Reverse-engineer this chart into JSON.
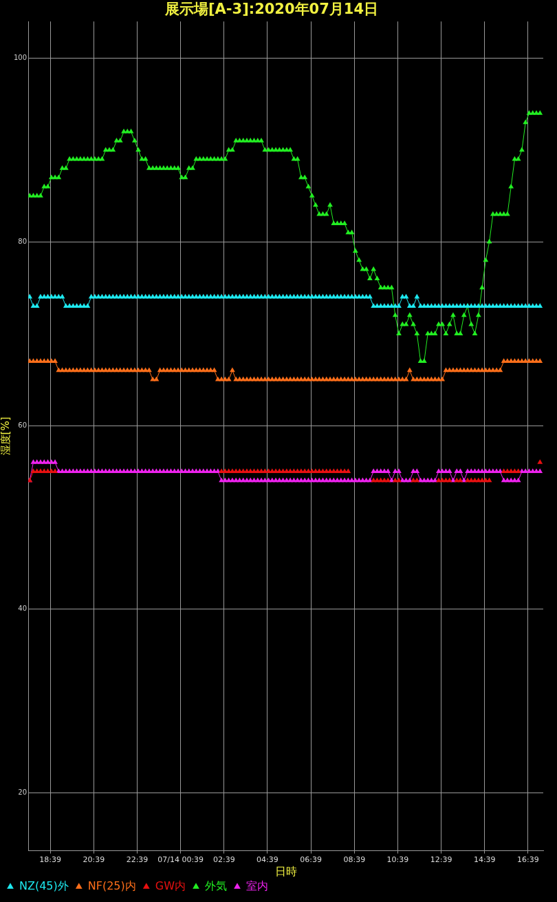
{
  "chart_data": {
    "type": "line",
    "title": "展示場[A-3]:2020年07月14日",
    "xlabel": "日時",
    "ylabel": "湿度[%]",
    "xlim": [
      "2020-07-13T17:38",
      "2020-07-14T17:21"
    ],
    "ylim": [
      13.7,
      104
    ],
    "xticks": [
      {
        "value": "2020-07-13T18:39",
        "label": "18:39"
      },
      {
        "value": "2020-07-13T20:39",
        "label": "20:39"
      },
      {
        "value": "2020-07-13T22:39",
        "label": "22:39"
      },
      {
        "value": "2020-07-14T00:39",
        "label": "07/14 00:39"
      },
      {
        "value": "2020-07-14T02:39",
        "label": "02:39"
      },
      {
        "value": "2020-07-14T04:39",
        "label": "04:39"
      },
      {
        "value": "2020-07-14T06:39",
        "label": "06:39"
      },
      {
        "value": "2020-07-14T08:39",
        "label": "08:39"
      },
      {
        "value": "2020-07-14T10:39",
        "label": "10:39"
      },
      {
        "value": "2020-07-14T12:39",
        "label": "12:39"
      },
      {
        "value": "2020-07-14T14:39",
        "label": "14:39"
      },
      {
        "value": "2020-07-14T16:39",
        "label": "16:39"
      }
    ],
    "yticks": [
      20,
      40,
      60,
      80,
      100
    ],
    "grid": true,
    "legend": "bottom left",
    "marker": "triangle",
    "line_style": "solid",
    "x": [
      "2020-07-13T17:42",
      "2020-07-13T17:52",
      "2020-07-13T18:02",
      "2020-07-13T18:12",
      "2020-07-13T18:22",
      "2020-07-13T18:32",
      "2020-07-13T18:42",
      "2020-07-13T18:52",
      "2020-07-13T19:02",
      "2020-07-13T19:12",
      "2020-07-13T19:22",
      "2020-07-13T19:32",
      "2020-07-13T19:42",
      "2020-07-13T19:52",
      "2020-07-13T20:02",
      "2020-07-13T20:12",
      "2020-07-13T20:22",
      "2020-07-13T20:32",
      "2020-07-13T20:42",
      "2020-07-13T20:52",
      "2020-07-13T21:02",
      "2020-07-13T21:12",
      "2020-07-13T21:22",
      "2020-07-13T21:32",
      "2020-07-13T21:42",
      "2020-07-13T21:52",
      "2020-07-13T22:02",
      "2020-07-13T22:12",
      "2020-07-13T22:22",
      "2020-07-13T22:32",
      "2020-07-13T22:42",
      "2020-07-13T22:52",
      "2020-07-13T23:02",
      "2020-07-13T23:12",
      "2020-07-13T23:22",
      "2020-07-13T23:32",
      "2020-07-13T23:42",
      "2020-07-13T23:52",
      "2020-07-14T00:02",
      "2020-07-14T00:12",
      "2020-07-14T00:22",
      "2020-07-14T00:32",
      "2020-07-14T00:42",
      "2020-07-14T00:52",
      "2020-07-14T01:02",
      "2020-07-14T01:12",
      "2020-07-14T01:22",
      "2020-07-14T01:32",
      "2020-07-14T01:42",
      "2020-07-14T01:52",
      "2020-07-14T02:02",
      "2020-07-14T02:12",
      "2020-07-14T02:22",
      "2020-07-14T02:32",
      "2020-07-14T02:42",
      "2020-07-14T02:52",
      "2020-07-14T03:02",
      "2020-07-14T03:12",
      "2020-07-14T03:22",
      "2020-07-14T03:32",
      "2020-07-14T03:42",
      "2020-07-14T03:52",
      "2020-07-14T04:02",
      "2020-07-14T04:12",
      "2020-07-14T04:22",
      "2020-07-14T04:32",
      "2020-07-14T04:42",
      "2020-07-14T04:52",
      "2020-07-14T05:02",
      "2020-07-14T05:12",
      "2020-07-14T05:22",
      "2020-07-14T05:32",
      "2020-07-14T05:42",
      "2020-07-14T05:52",
      "2020-07-14T06:02",
      "2020-07-14T06:12",
      "2020-07-14T06:22",
      "2020-07-14T06:32",
      "2020-07-14T06:42",
      "2020-07-14T06:52",
      "2020-07-14T07:02",
      "2020-07-14T07:12",
      "2020-07-14T07:22",
      "2020-07-14T07:32",
      "2020-07-14T07:42",
      "2020-07-14T07:52",
      "2020-07-14T08:02",
      "2020-07-14T08:12",
      "2020-07-14T08:22",
      "2020-07-14T08:32",
      "2020-07-14T08:42",
      "2020-07-14T08:52",
      "2020-07-14T09:02",
      "2020-07-14T09:12",
      "2020-07-14T09:22",
      "2020-07-14T09:32",
      "2020-07-14T09:42",
      "2020-07-14T09:52",
      "2020-07-14T10:02",
      "2020-07-14T10:12",
      "2020-07-14T10:22",
      "2020-07-14T10:32",
      "2020-07-14T10:42",
      "2020-07-14T10:52",
      "2020-07-14T11:02",
      "2020-07-14T11:12",
      "2020-07-14T11:22",
      "2020-07-14T11:32",
      "2020-07-14T11:42",
      "2020-07-14T11:52",
      "2020-07-14T12:02",
      "2020-07-14T12:12",
      "2020-07-14T12:22",
      "2020-07-14T12:32",
      "2020-07-14T12:42",
      "2020-07-14T12:52",
      "2020-07-14T13:02",
      "2020-07-14T13:12",
      "2020-07-14T13:22",
      "2020-07-14T13:32",
      "2020-07-14T13:42",
      "2020-07-14T13:52",
      "2020-07-14T14:02",
      "2020-07-14T14:12",
      "2020-07-14T14:22",
      "2020-07-14T14:32",
      "2020-07-14T14:42",
      "2020-07-14T14:52",
      "2020-07-14T15:02",
      "2020-07-14T15:12",
      "2020-07-14T15:22",
      "2020-07-14T15:32",
      "2020-07-14T15:42",
      "2020-07-14T15:52",
      "2020-07-14T16:02",
      "2020-07-14T16:12",
      "2020-07-14T16:22",
      "2020-07-14T16:32",
      "2020-07-14T16:42",
      "2020-07-14T16:52",
      "2020-07-14T17:02",
      "2020-07-14T17:12"
    ],
    "series": [
      {
        "name": "NZ(45)外",
        "color": "#1de9f0",
        "values": [
          74,
          73,
          73,
          74,
          74,
          74,
          74,
          74,
          74,
          74,
          73,
          73,
          73,
          73,
          73,
          73,
          73,
          74,
          74,
          74,
          74,
          74,
          74,
          74,
          74,
          74,
          74,
          74,
          74,
          74,
          74,
          74,
          74,
          74,
          74,
          74,
          74,
          74,
          74,
          74,
          74,
          74,
          74,
          74,
          74,
          74,
          74,
          74,
          74,
          74,
          74,
          74,
          74,
          74,
          74,
          74,
          74,
          74,
          74,
          74,
          74,
          74,
          74,
          74,
          74,
          74,
          74,
          74,
          74,
          74,
          74,
          74,
          74,
          74,
          74,
          74,
          74,
          74,
          74,
          74,
          74,
          74,
          74,
          74,
          74,
          74,
          74,
          74,
          74,
          74,
          74,
          74,
          74,
          74,
          74,
          73,
          73,
          73,
          73,
          73,
          73,
          73,
          73,
          74,
          74,
          73,
          73,
          74,
          73,
          73,
          73,
          73,
          73,
          73,
          73,
          73,
          73,
          73,
          73,
          73,
          73,
          73,
          73,
          73,
          73,
          73,
          73,
          73,
          73,
          73,
          73,
          73,
          73,
          73,
          73,
          73,
          73,
          73,
          73,
          73,
          73,
          73
        ]
      },
      {
        "name": "NF(25)内",
        "color": "#ff6f1a",
        "values": [
          67,
          67,
          67,
          67,
          67,
          67,
          67,
          67,
          66,
          66,
          66,
          66,
          66,
          66,
          66,
          66,
          66,
          66,
          66,
          66,
          66,
          66,
          66,
          66,
          66,
          66,
          66,
          66,
          66,
          66,
          66,
          66,
          66,
          66,
          65,
          65,
          66,
          66,
          66,
          66,
          66,
          66,
          66,
          66,
          66,
          66,
          66,
          66,
          66,
          66,
          66,
          66,
          65,
          65,
          65,
          65,
          66,
          65,
          65,
          65,
          65,
          65,
          65,
          65,
          65,
          65,
          65,
          65,
          65,
          65,
          65,
          65,
          65,
          65,
          65,
          65,
          65,
          65,
          65,
          65,
          65,
          65,
          65,
          65,
          65,
          65,
          65,
          65,
          65,
          65,
          65,
          65,
          65,
          65,
          65,
          65,
          65,
          65,
          65,
          65,
          65,
          65,
          65,
          65,
          65,
          66,
          65,
          65,
          65,
          65,
          65,
          65,
          65,
          65,
          65,
          66,
          66,
          66,
          66,
          66,
          66,
          66,
          66,
          66,
          66,
          66,
          66,
          66,
          66,
          66,
          66,
          67,
          67,
          67,
          67,
          67,
          67,
          67,
          67,
          67,
          67,
          67
        ]
      },
      {
        "name": "GW内",
        "color": "#e81010",
        "values": [
          54,
          55,
          55,
          55,
          55,
          55,
          55,
          55,
          null,
          null,
          null,
          null,
          null,
          null,
          null,
          null,
          null,
          null,
          null,
          null,
          null,
          null,
          null,
          null,
          null,
          null,
          null,
          null,
          null,
          null,
          null,
          null,
          null,
          null,
          null,
          null,
          null,
          null,
          null,
          null,
          null,
          null,
          null,
          null,
          null,
          null,
          null,
          null,
          null,
          null,
          null,
          null,
          null,
          55,
          55,
          55,
          55,
          55,
          55,
          55,
          55,
          55,
          55,
          55,
          55,
          55,
          55,
          55,
          55,
          55,
          55,
          55,
          55,
          55,
          55,
          55,
          55,
          55,
          55,
          55,
          55,
          55,
          55,
          55,
          55,
          55,
          55,
          55,
          55,
          null,
          null,
          null,
          null,
          null,
          null,
          54,
          54,
          54,
          54,
          54,
          null,
          54,
          54,
          null,
          null,
          null,
          54,
          54,
          null,
          null,
          null,
          null,
          null,
          54,
          54,
          54,
          54,
          null,
          54,
          54,
          null,
          54,
          54,
          54,
          54,
          54,
          54,
          54,
          null,
          null,
          null,
          55,
          55,
          55,
          55,
          55,
          null,
          null,
          null,
          null,
          null,
          56
        ]
      },
      {
        "name": "外気",
        "color": "#22ee22",
        "values": [
          85,
          85,
          85,
          85,
          86,
          86,
          87,
          87,
          87,
          88,
          88,
          89,
          89,
          89,
          89,
          89,
          89,
          89,
          89,
          89,
          89,
          90,
          90,
          90,
          91,
          91,
          92,
          92,
          92,
          91,
          90,
          89,
          89,
          88,
          88,
          88,
          88,
          88,
          88,
          88,
          88,
          88,
          87,
          87,
          88,
          88,
          89,
          89,
          89,
          89,
          89,
          89,
          89,
          89,
          89,
          90,
          90,
          91,
          91,
          91,
          91,
          91,
          91,
          91,
          91,
          90,
          90,
          90,
          90,
          90,
          90,
          90,
          90,
          89,
          89,
          87,
          87,
          86,
          85,
          84,
          83,
          83,
          83,
          84,
          82,
          82,
          82,
          82,
          81,
          81,
          79,
          78,
          77,
          77,
          76,
          77,
          76,
          75,
          75,
          75,
          75,
          72,
          70,
          71,
          71,
          72,
          71,
          70,
          67,
          67,
          70,
          70,
          70,
          71,
          71,
          70,
          71,
          72,
          70,
          70,
          72,
          73,
          71,
          70,
          72,
          75,
          78,
          80,
          83,
          83,
          83,
          83,
          83,
          86,
          89,
          89,
          90,
          93,
          94,
          94,
          94,
          94
        ]
      },
      {
        "name": "室内",
        "color": "#ee22ee",
        "values": [
          54,
          56,
          56,
          56,
          56,
          56,
          56,
          56,
          55,
          55,
          55,
          55,
          55,
          55,
          55,
          55,
          55,
          55,
          55,
          55,
          55,
          55,
          55,
          55,
          55,
          55,
          55,
          55,
          55,
          55,
          55,
          55,
          55,
          55,
          55,
          55,
          55,
          55,
          55,
          55,
          55,
          55,
          55,
          55,
          55,
          55,
          55,
          55,
          55,
          55,
          55,
          55,
          55,
          54,
          54,
          54,
          54,
          54,
          54,
          54,
          54,
          54,
          54,
          54,
          54,
          54,
          54,
          54,
          54,
          54,
          54,
          54,
          54,
          54,
          54,
          54,
          54,
          54,
          54,
          54,
          54,
          54,
          54,
          54,
          54,
          54,
          54,
          54,
          54,
          54,
          54,
          54,
          54,
          54,
          54,
          55,
          55,
          55,
          55,
          55,
          54,
          55,
          55,
          54,
          54,
          54,
          55,
          55,
          54,
          54,
          54,
          54,
          54,
          55,
          55,
          55,
          55,
          54,
          55,
          55,
          54,
          55,
          55,
          55,
          55,
          55,
          55,
          55,
          55,
          55,
          55,
          54,
          54,
          54,
          54,
          54,
          55,
          55,
          55,
          55,
          55,
          55
        ]
      }
    ]
  }
}
